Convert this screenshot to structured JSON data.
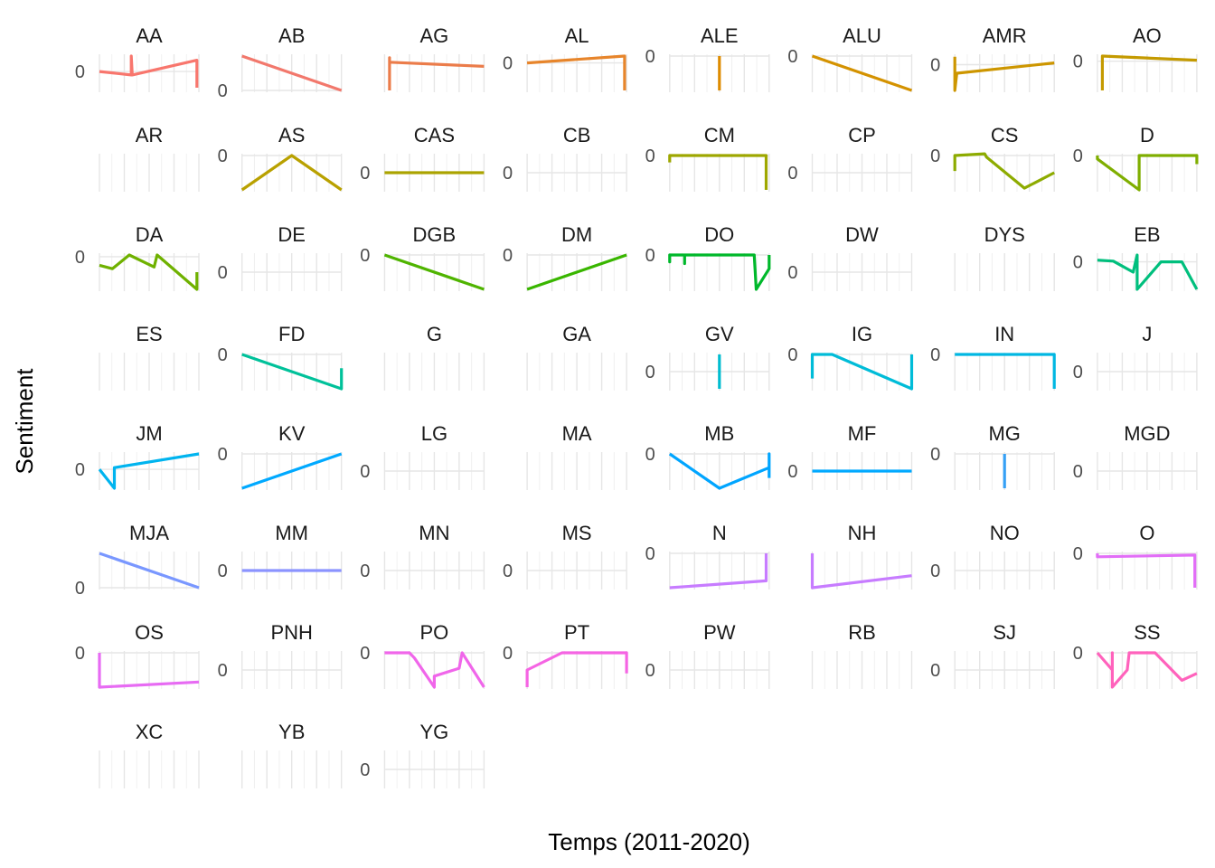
{
  "chart_data": {
    "type": "line",
    "xlabel": "Temps (2011-2020)",
    "ylabel": "Sentiment",
    "zero_tick_label": "0",
    "facet_layout": {
      "ncol": 8,
      "nrow": 8,
      "free_y_scales": true
    },
    "grid": true,
    "facets": [
      {
        "name": "AA",
        "color": "#F8766D",
        "zero": 0.45,
        "points": [
          [
            0,
            0.45
          ],
          [
            0.32,
            0.55
          ],
          [
            0.32,
            0
          ],
          [
            0.33,
            0.55
          ],
          [
            0.98,
            0.12
          ],
          [
            0.98,
            0.92
          ]
        ]
      },
      {
        "name": "AB",
        "color": "#F2786C",
        "zero": 1.0,
        "points": [
          [
            0,
            0
          ],
          [
            1,
            1
          ]
        ]
      },
      {
        "name": "AG",
        "color": "#EB7C4A",
        "zero": null,
        "points": [
          [
            0.05,
            1
          ],
          [
            0.05,
            0.05
          ],
          [
            0.05,
            0.18
          ],
          [
            1,
            0.3
          ]
        ]
      },
      {
        "name": "AL",
        "color": "#E7852B",
        "zero": 0.2,
        "points": [
          [
            0,
            0.2
          ],
          [
            0.98,
            0
          ],
          [
            0.98,
            1
          ]
        ]
      },
      {
        "name": "ALE",
        "color": "#DE8C00",
        "zero": 0.0,
        "points": [
          [
            0.5,
            0
          ],
          [
            0.5,
            1
          ]
        ]
      },
      {
        "name": "ALU",
        "color": "#D49200",
        "zero": 0.0,
        "points": [
          [
            0,
            0
          ],
          [
            1,
            1
          ]
        ]
      },
      {
        "name": "AMR",
        "color": "#CD9600",
        "zero": 0.25,
        "points": [
          [
            0,
            0.02
          ],
          [
            0,
            1
          ],
          [
            0.02,
            0.5
          ],
          [
            1,
            0.2
          ]
        ]
      },
      {
        "name": "AO",
        "color": "#C49A00",
        "zero": 0.15,
        "points": [
          [
            0.05,
            1
          ],
          [
            0.05,
            0
          ],
          [
            1,
            0.12
          ]
        ]
      },
      {
        "name": "AR",
        "color": "#BBA000",
        "zero": null,
        "points": []
      },
      {
        "name": "AS",
        "color": "#B9A100",
        "zero": 0.0,
        "points": [
          [
            0,
            1
          ],
          [
            0.5,
            0
          ],
          [
            1,
            1
          ]
        ]
      },
      {
        "name": "CAS",
        "color": "#ABA300",
        "zero": 0.5,
        "points": [
          [
            0,
            0.5
          ],
          [
            1,
            0.5
          ]
        ]
      },
      {
        "name": "CB",
        "color": "#A3A500",
        "zero": 0.5,
        "points": []
      },
      {
        "name": "CM",
        "color": "#9EA700",
        "zero": 0.0,
        "points": [
          [
            0,
            0.2
          ],
          [
            0,
            0
          ],
          [
            0.97,
            0
          ],
          [
            0.97,
            1
          ]
        ]
      },
      {
        "name": "CP",
        "color": "#97A800",
        "zero": 0.5,
        "points": []
      },
      {
        "name": "CS",
        "color": "#8DAB00",
        "zero": 0.0,
        "points": [
          [
            0,
            0.45
          ],
          [
            0,
            0
          ],
          [
            0.3,
            -0.05
          ],
          [
            0.32,
            0.05
          ],
          [
            0.7,
            0.95
          ],
          [
            1,
            0.5
          ]
        ]
      },
      {
        "name": "D",
        "color": "#7FAE00",
        "zero": 0.0,
        "points": [
          [
            0,
            0
          ],
          [
            0,
            0.1
          ],
          [
            0.42,
            1
          ],
          [
            0.42,
            0
          ],
          [
            1,
            0
          ],
          [
            1,
            0.25
          ]
        ]
      },
      {
        "name": "DA",
        "color": "#6FB100",
        "zero": 0.05,
        "points": [
          [
            0,
            0.3
          ],
          [
            0.13,
            0.4
          ],
          [
            0.3,
            0
          ],
          [
            0.55,
            0.35
          ],
          [
            0.58,
            0
          ],
          [
            0.98,
            1
          ],
          [
            0.98,
            0.5
          ]
        ]
      },
      {
        "name": "DE",
        "color": "#62B300",
        "zero": 0.5,
        "points": []
      },
      {
        "name": "DGB",
        "color": "#4FB400",
        "zero": 0.0,
        "points": [
          [
            0,
            0
          ],
          [
            1,
            1
          ]
        ]
      },
      {
        "name": "DM",
        "color": "#39B600",
        "zero": 0.0,
        "points": [
          [
            0,
            1
          ],
          [
            1,
            0
          ]
        ]
      },
      {
        "name": "DO",
        "color": "#00B82B",
        "zero": 0.0,
        "points": [
          [
            0,
            0
          ],
          [
            0,
            0.2
          ],
          [
            0,
            0
          ],
          [
            0.15,
            0
          ],
          [
            0.15,
            0.25
          ],
          [
            0.15,
            0
          ],
          [
            0.85,
            0
          ],
          [
            0.87,
            1
          ],
          [
            1,
            0.4
          ],
          [
            1,
            0
          ]
        ]
      },
      {
        "name": "DW",
        "color": "#00BA38",
        "zero": 0.5,
        "points": []
      },
      {
        "name": "DYS",
        "color": "#00BD5C",
        "zero": null,
        "points": []
      },
      {
        "name": "EB",
        "color": "#00BF7D",
        "zero": 0.2,
        "points": [
          [
            0,
            0.15
          ],
          [
            0.16,
            0.18
          ],
          [
            0.36,
            0.5
          ],
          [
            0.4,
            0
          ],
          [
            0.4,
            1
          ],
          [
            0.64,
            0.2
          ],
          [
            0.85,
            0.2
          ],
          [
            1,
            1
          ]
        ]
      },
      {
        "name": "ES",
        "color": "#00C08B",
        "zero": null,
        "points": []
      },
      {
        "name": "FD",
        "color": "#00C19A",
        "zero": 0.0,
        "points": [
          [
            0,
            0
          ],
          [
            1,
            1
          ],
          [
            1,
            0.4
          ]
        ]
      },
      {
        "name": "G",
        "color": "#00C0AF",
        "zero": null,
        "points": []
      },
      {
        "name": "GA",
        "color": "#00BFC4",
        "zero": null,
        "points": []
      },
      {
        "name": "GV",
        "color": "#00BDD0",
        "zero": 0.5,
        "points": [
          [
            0.5,
            0
          ],
          [
            0.5,
            1
          ]
        ]
      },
      {
        "name": "IG",
        "color": "#00BCD8",
        "zero": 0.0,
        "points": [
          [
            0,
            0.7
          ],
          [
            0,
            0
          ],
          [
            0.2,
            0
          ],
          [
            1,
            1
          ],
          [
            1,
            0
          ]
        ]
      },
      {
        "name": "IN",
        "color": "#00B7E2",
        "zero": 0.0,
        "points": [
          [
            0,
            0
          ],
          [
            1,
            0
          ],
          [
            1,
            1
          ]
        ]
      },
      {
        "name": "J",
        "color": "#00B0F6",
        "zero": 0.5,
        "points": []
      },
      {
        "name": "JM",
        "color": "#00B4EF",
        "zero": 0.45,
        "points": [
          [
            0,
            0.45
          ],
          [
            0.15,
            1
          ],
          [
            0.15,
            0.4
          ],
          [
            1,
            0
          ]
        ]
      },
      {
        "name": "KV",
        "color": "#00A9FF",
        "zero": 0.0,
        "points": [
          [
            0,
            1
          ],
          [
            1,
            0
          ]
        ]
      },
      {
        "name": "LG",
        "color": "#35A2FF",
        "zero": 0.5,
        "points": []
      },
      {
        "name": "MA",
        "color": "#619CFF",
        "zero": null,
        "points": []
      },
      {
        "name": "MB",
        "color": "#00A5FF",
        "zero": 0.0,
        "points": [
          [
            0,
            0
          ],
          [
            0.5,
            1
          ],
          [
            1,
            0.4
          ],
          [
            1,
            0.0
          ],
          [
            1,
            0.7
          ]
        ]
      },
      {
        "name": "MF",
        "color": "#00A9FF",
        "zero": 0.5,
        "points": [
          [
            0,
            0.5
          ],
          [
            1,
            0.5
          ]
        ]
      },
      {
        "name": "MG",
        "color": "#35A0F5",
        "zero": 0.0,
        "points": [
          [
            0.5,
            0
          ],
          [
            0.5,
            1
          ]
        ]
      },
      {
        "name": "MGD",
        "color": "#619CFF",
        "zero": 0.5,
        "points": []
      },
      {
        "name": "MJA",
        "color": "#7997FF",
        "zero": 1.0,
        "points": [
          [
            0,
            0
          ],
          [
            1,
            1
          ]
        ]
      },
      {
        "name": "MM",
        "color": "#8B93FF",
        "zero": 0.5,
        "points": [
          [
            0,
            0.5
          ],
          [
            1,
            0.5
          ]
        ]
      },
      {
        "name": "MN",
        "color": "#9590FF",
        "zero": 0.5,
        "points": []
      },
      {
        "name": "MS",
        "color": "#A58AFF",
        "zero": 0.5,
        "points": []
      },
      {
        "name": "N",
        "color": "#C77CFF",
        "zero": 0.0,
        "points": [
          [
            0,
            1
          ],
          [
            0.97,
            0.8
          ],
          [
            0.97,
            0
          ]
        ]
      },
      {
        "name": "NH",
        "color": "#C77CFF",
        "zero": null,
        "points": [
          [
            0,
            0
          ],
          [
            0,
            1
          ],
          [
            1,
            0.65
          ]
        ]
      },
      {
        "name": "NO",
        "color": "#D575FE",
        "zero": 0.5,
        "points": []
      },
      {
        "name": "O",
        "color": "#E26EF7",
        "zero": 0.0,
        "points": [
          [
            0,
            0
          ],
          [
            0,
            0.1
          ],
          [
            0.98,
            0.05
          ],
          [
            0.98,
            1
          ]
        ]
      },
      {
        "name": "OS",
        "color": "#E76BF3",
        "zero": 0.0,
        "points": [
          [
            0,
            0
          ],
          [
            0,
            1
          ],
          [
            1,
            0.85
          ]
        ]
      },
      {
        "name": "PNH",
        "color": "#ED68ED",
        "zero": 0.5,
        "points": []
      },
      {
        "name": "PO",
        "color": "#F066EA",
        "zero": 0.0,
        "points": [
          [
            0,
            0
          ],
          [
            0.25,
            0
          ],
          [
            0.3,
            0.15
          ],
          [
            0.5,
            1
          ],
          [
            0.5,
            0.68
          ],
          [
            0.75,
            0.45
          ],
          [
            0.78,
            0
          ],
          [
            1,
            1
          ]
        ]
      },
      {
        "name": "PT",
        "color": "#F564E3",
        "zero": 0.0,
        "points": [
          [
            0,
            1
          ],
          [
            0,
            0.5
          ],
          [
            0.35,
            0
          ],
          [
            1,
            0
          ],
          [
            1,
            0.6
          ]
        ]
      },
      {
        "name": "PW",
        "color": "#F962DD",
        "zero": 0.5,
        "points": []
      },
      {
        "name": "RB",
        "color": "#FC61D5",
        "zero": null,
        "points": []
      },
      {
        "name": "SJ",
        "color": "#FF61C9",
        "zero": 0.5,
        "points": []
      },
      {
        "name": "SS",
        "color": "#FF62BC",
        "zero": 0.0,
        "points": [
          [
            0,
            0
          ],
          [
            0.15,
            0.5
          ],
          [
            0.15,
            0
          ],
          [
            0.15,
            1
          ],
          [
            0.3,
            0.5
          ],
          [
            0.32,
            0
          ],
          [
            0.58,
            0
          ],
          [
            0.85,
            0.8
          ],
          [
            1,
            0.6
          ]
        ]
      },
      {
        "name": "XC",
        "color": "#FF65AE",
        "zero": null,
        "points": []
      },
      {
        "name": "YB",
        "color": "#FF689F",
        "zero": null,
        "points": []
      },
      {
        "name": "YG",
        "color": "#FF6C91",
        "zero": 0.5,
        "points": []
      }
    ]
  }
}
